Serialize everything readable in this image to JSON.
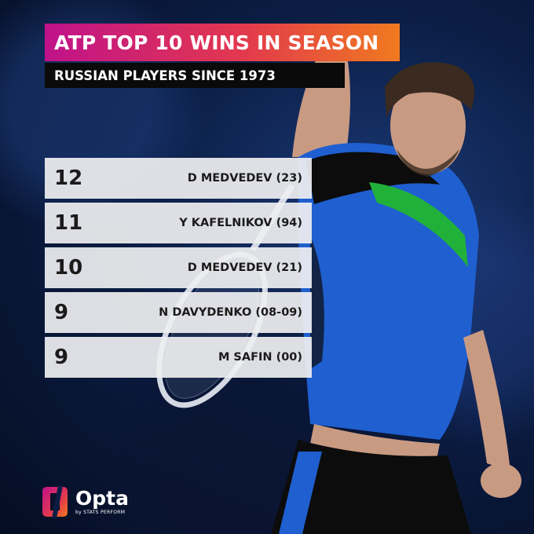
{
  "header": {
    "title": "ATP TOP 10 WINS IN SEASON",
    "subtitle": "RUSSIAN PLAYERS SINCE 1973"
  },
  "rows": [
    {
      "value": "12",
      "name": "D MEDVEDEV (23)"
    },
    {
      "value": "11",
      "name": "Y KAFELNIKOV (94)"
    },
    {
      "value": "10",
      "name": "D MEDVEDEV (21)"
    },
    {
      "value": "9",
      "name": "N DAVYDENKO (08-09)"
    },
    {
      "value": "9",
      "name": "M SAFIN (00)"
    }
  ],
  "branding": {
    "logo_word": "Opta",
    "logo_sub": "by STATS PERFORM",
    "icon": "opta-logo-icon"
  },
  "colors": {
    "title_gradient_start": "#c0128a",
    "title_gradient_end": "#f07a1f",
    "subtitle_bg": "#0a0a0a",
    "row_bg": "#eeeef0",
    "background": "#0b1d44"
  }
}
